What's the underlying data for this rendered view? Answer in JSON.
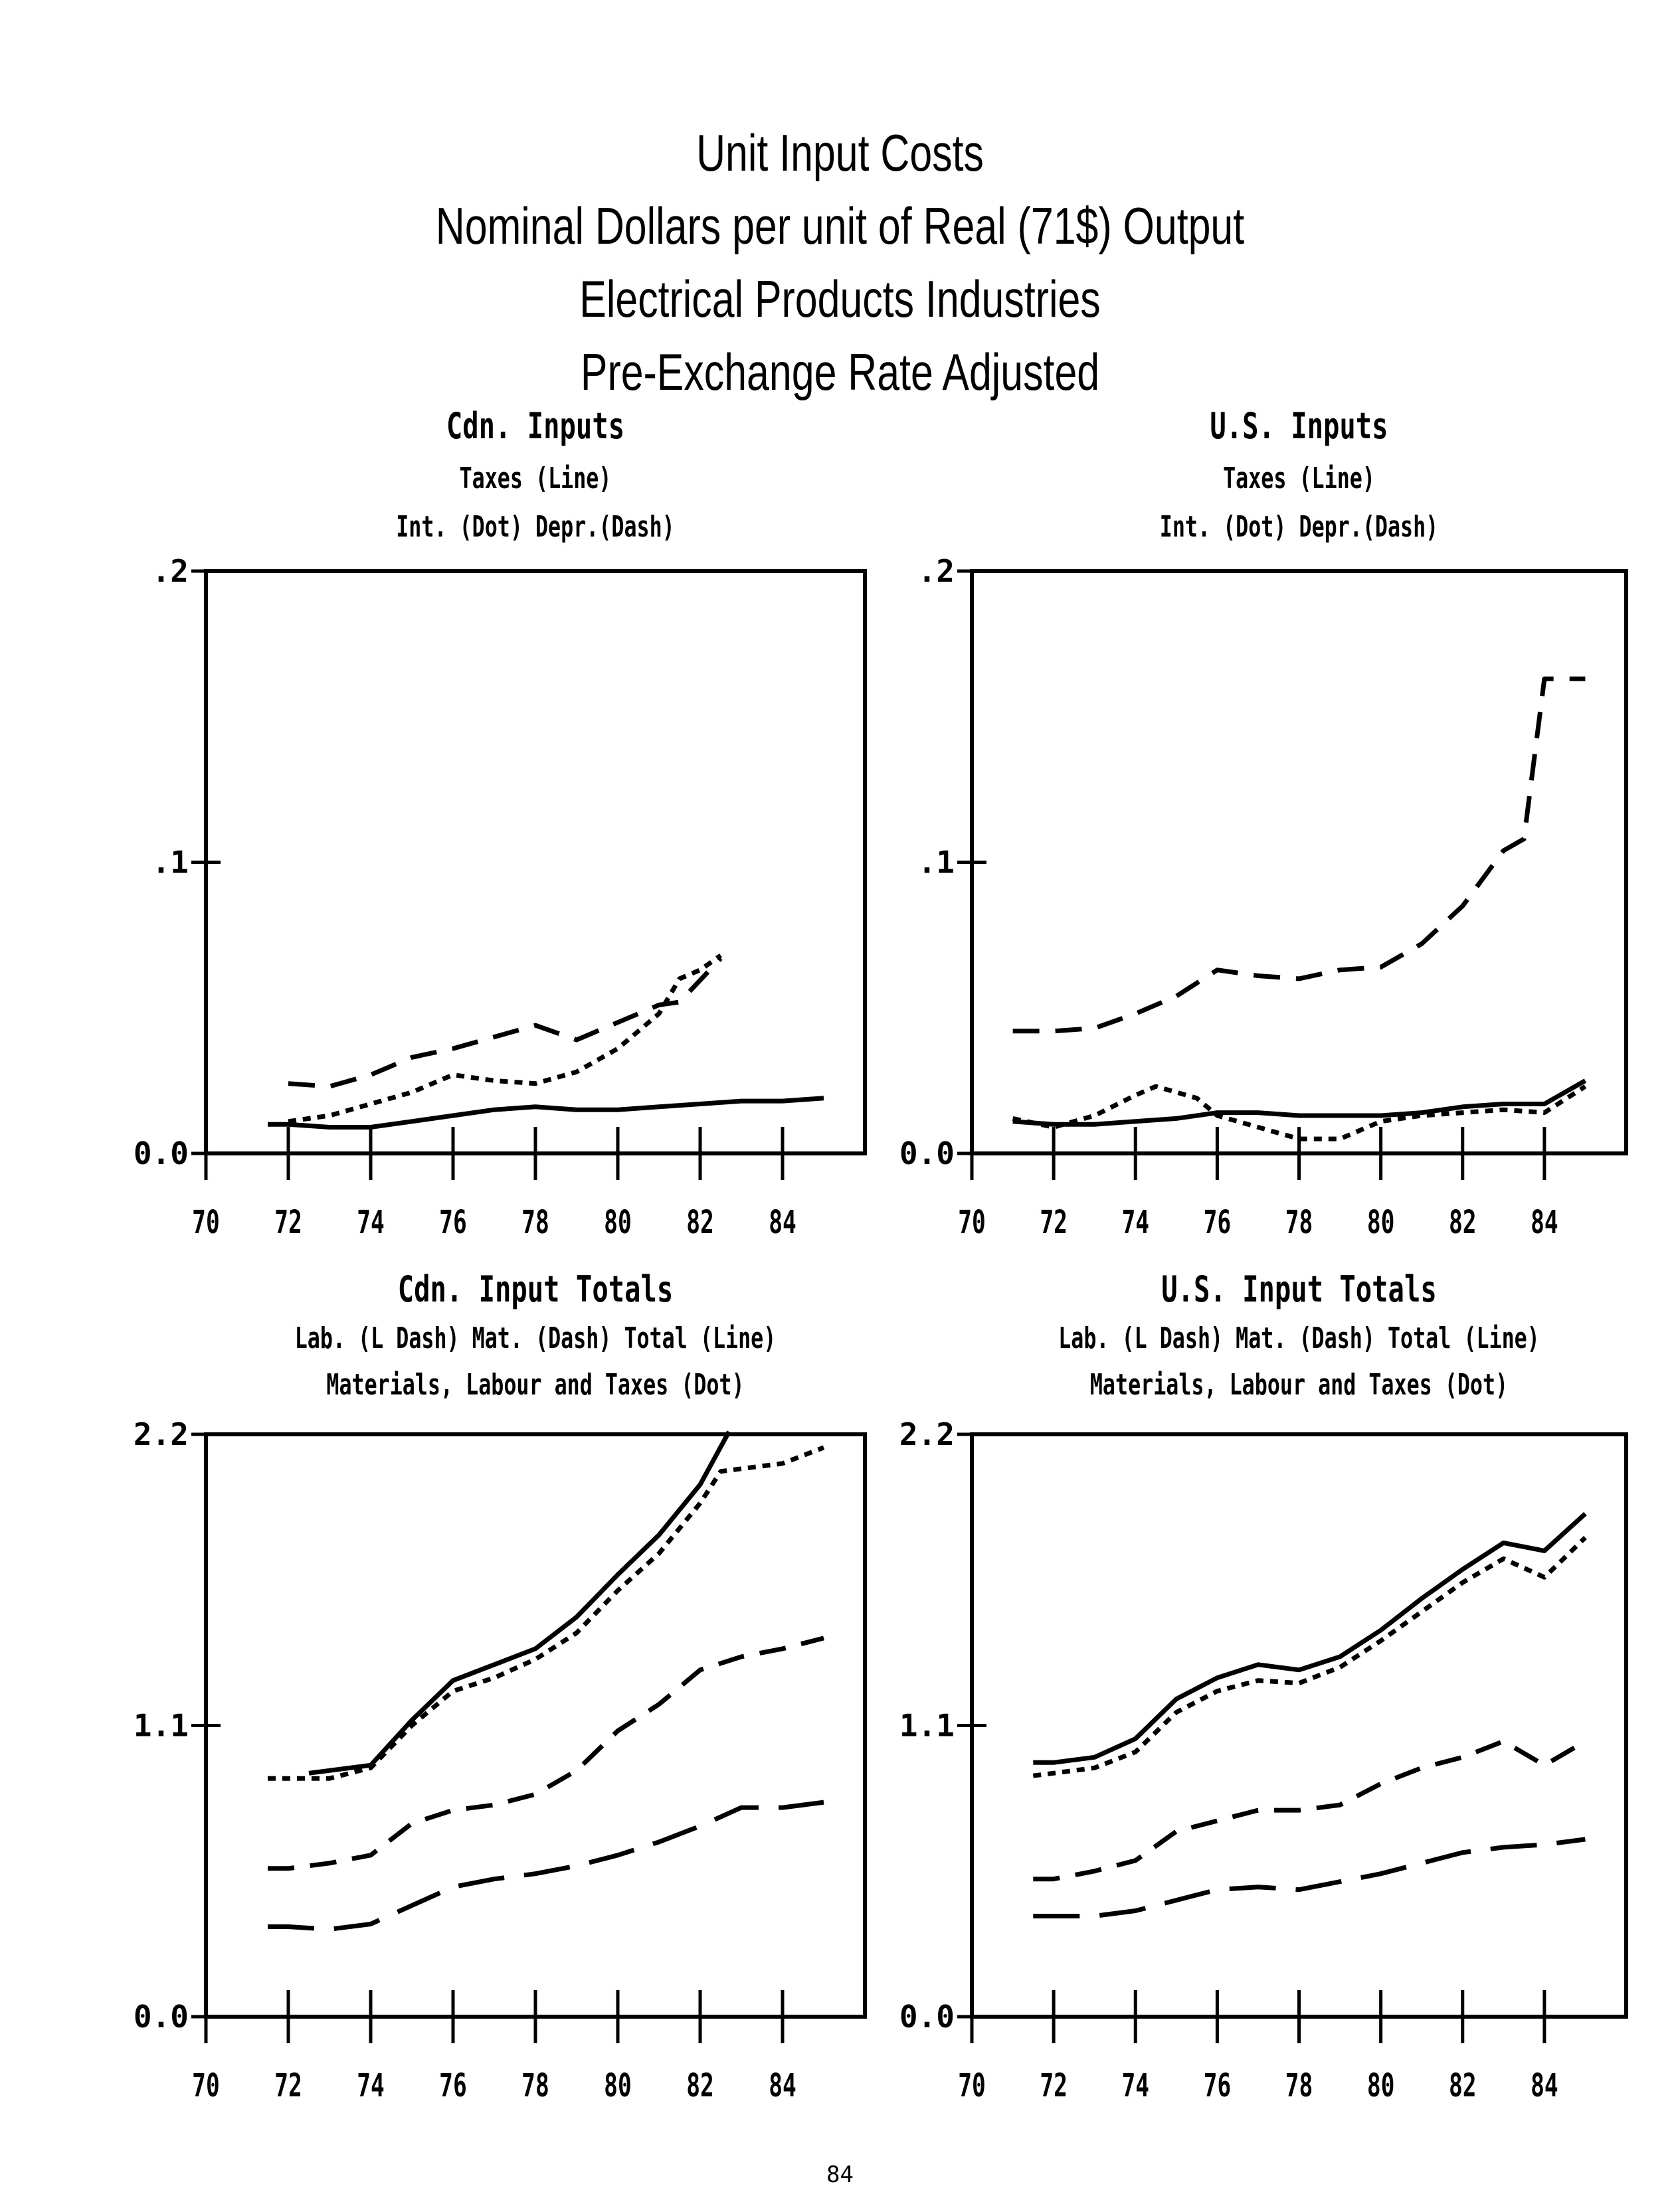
{
  "page": {
    "title_lines": [
      "Unit Input Costs",
      "Nominal Dollars per unit of Real (71$) Output",
      "Electrical Products Industries",
      "Pre-Exchange Rate Adjusted"
    ],
    "page_number": "84"
  },
  "chart_data": [
    {
      "type": "line",
      "title": "Cdn. Inputs",
      "subtitle_lines": [
        "Taxes (Line)",
        "Int. (Dot)   Depr.(Dash)"
      ],
      "x_ticks": [
        "70",
        "72",
        "74",
        "76",
        "78",
        "80",
        "82",
        "84"
      ],
      "xlim": [
        70,
        86
      ],
      "ylim": [
        0,
        0.2
      ],
      "y_ticks": [
        0,
        0.1,
        0.2
      ],
      "y_tick_labels": [
        "0.0",
        ".1",
        ".2"
      ],
      "series": [
        {
          "name": "Taxes",
          "style": "solid",
          "x": [
            71.5,
            72,
            73,
            74,
            75,
            76,
            77,
            78,
            79,
            80,
            81,
            82,
            83,
            84,
            85
          ],
          "y": [
            0.01,
            0.01,
            0.009,
            0.009,
            0.011,
            0.013,
            0.015,
            0.016,
            0.015,
            0.015,
            0.016,
            0.017,
            0.018,
            0.018,
            0.019
          ]
        },
        {
          "name": "Int.",
          "style": "dot",
          "x": [
            72,
            73,
            74,
            75,
            76,
            77,
            78,
            79,
            80,
            81,
            81.5,
            82,
            82.5
          ],
          "y": [
            0.011,
            0.013,
            0.017,
            0.021,
            0.027,
            0.025,
            0.024,
            0.028,
            0.036,
            0.048,
            0.06,
            0.063,
            0.068
          ]
        },
        {
          "name": "Depr.",
          "style": "dash",
          "x": [
            72,
            73,
            74,
            75,
            76,
            77,
            78,
            79,
            80,
            81,
            81.5,
            82.5
          ],
          "y": [
            0.024,
            0.023,
            0.027,
            0.033,
            0.036,
            0.04,
            0.044,
            0.039,
            0.045,
            0.051,
            0.052,
            0.067
          ]
        }
      ]
    },
    {
      "type": "line",
      "title": "U.S. Inputs",
      "subtitle_lines": [
        "Taxes (Line)",
        "Int. (Dot)   Depr.(Dash)"
      ],
      "x_ticks": [
        "70",
        "72",
        "74",
        "76",
        "78",
        "80",
        "82",
        "84"
      ],
      "xlim": [
        70,
        86
      ],
      "ylim": [
        0,
        0.2
      ],
      "y_ticks": [
        0,
        0.1,
        0.2
      ],
      "y_tick_labels": [
        "0.0",
        ".1",
        ".2"
      ],
      "series": [
        {
          "name": "Taxes",
          "style": "solid",
          "x": [
            71,
            72,
            73,
            74,
            75,
            76,
            77,
            78,
            79,
            80,
            81,
            82,
            83,
            84,
            85
          ],
          "y": [
            0.011,
            0.01,
            0.01,
            0.011,
            0.012,
            0.014,
            0.014,
            0.013,
            0.013,
            0.013,
            0.014,
            0.016,
            0.017,
            0.017,
            0.025
          ]
        },
        {
          "name": "Int.",
          "style": "dot",
          "x": [
            71,
            72,
            73,
            74,
            74.5,
            75,
            75.5,
            76,
            77,
            78,
            79,
            80,
            81,
            82,
            83,
            84,
            85
          ],
          "y": [
            0.012,
            0.009,
            0.013,
            0.02,
            0.023,
            0.021,
            0.019,
            0.013,
            0.009,
            0.005,
            0.005,
            0.011,
            0.013,
            0.014,
            0.015,
            0.014,
            0.023
          ]
        },
        {
          "name": "Depr.",
          "style": "dash",
          "x": [
            71,
            72,
            73,
            74,
            75,
            76,
            77,
            78,
            79,
            80,
            81,
            82,
            83,
            83.5,
            84,
            85
          ],
          "y": [
            0.042,
            0.042,
            0.043,
            0.048,
            0.054,
            0.063,
            0.061,
            0.06,
            0.063,
            0.064,
            0.072,
            0.085,
            0.104,
            0.108,
            0.163,
            0.163
          ]
        }
      ]
    },
    {
      "type": "line",
      "title": "Cdn. Input Totals",
      "subtitle_lines": [
        "Lab. (L Dash)   Mat. (Dash)   Total (Line)",
        "Materials, Labour and Taxes (Dot)"
      ],
      "x_ticks": [
        "70",
        "72",
        "74",
        "76",
        "78",
        "80",
        "82",
        "84"
      ],
      "xlim": [
        70,
        86
      ],
      "ylim": [
        0,
        2.2
      ],
      "y_ticks": [
        0,
        1.1,
        2.2
      ],
      "y_tick_labels": [
        "0.0",
        "1.1",
        "2.2"
      ],
      "series": [
        {
          "name": "Total",
          "style": "solid",
          "x": [
            72.5,
            73,
            74,
            75,
            76,
            77,
            78,
            79,
            80,
            81,
            82,
            82.7
          ],
          "y": [
            0.92,
            0.93,
            0.95,
            1.12,
            1.27,
            1.33,
            1.39,
            1.51,
            1.67,
            1.82,
            2.01,
            2.21
          ]
        },
        {
          "name": "Materials, Labour and Taxes",
          "style": "dot",
          "x": [
            71.5,
            72,
            73,
            74,
            75,
            76,
            77,
            78,
            79,
            80,
            81,
            82,
            82.5,
            83,
            84,
            85
          ],
          "y": [
            0.9,
            0.9,
            0.9,
            0.94,
            1.1,
            1.23,
            1.28,
            1.35,
            1.45,
            1.61,
            1.75,
            1.94,
            2.06,
            2.07,
            2.09,
            2.15
          ]
        },
        {
          "name": "Mat.",
          "style": "dash",
          "x": [
            71.5,
            72,
            73,
            74,
            75,
            76,
            77,
            78,
            79,
            80,
            81,
            82,
            83,
            84,
            85
          ],
          "y": [
            0.56,
            0.56,
            0.58,
            0.61,
            0.73,
            0.78,
            0.8,
            0.84,
            0.93,
            1.08,
            1.18,
            1.31,
            1.36,
            1.39,
            1.43
          ]
        },
        {
          "name": "Lab.",
          "style": "long-dash",
          "x": [
            71.5,
            72,
            73,
            74,
            75,
            76,
            77,
            78,
            79,
            80,
            81,
            82,
            83,
            84,
            85
          ],
          "y": [
            0.34,
            0.34,
            0.33,
            0.35,
            0.42,
            0.49,
            0.52,
            0.54,
            0.57,
            0.61,
            0.66,
            0.72,
            0.79,
            0.79,
            0.81
          ]
        }
      ]
    },
    {
      "type": "line",
      "title": "U.S. Input Totals",
      "subtitle_lines": [
        "Lab. (L Dash)   Mat. (Dash)   Total (Line)",
        "Materials, Labour and Taxes (Dot)"
      ],
      "x_ticks": [
        "70",
        "72",
        "74",
        "76",
        "78",
        "80",
        "82",
        "84"
      ],
      "xlim": [
        70,
        86
      ],
      "ylim": [
        0,
        2.2
      ],
      "y_ticks": [
        0,
        1.1,
        2.2
      ],
      "y_tick_labels": [
        "0.0",
        "1.1",
        "2.2"
      ],
      "series": [
        {
          "name": "Total",
          "style": "solid",
          "x": [
            71.5,
            72,
            73,
            74,
            75,
            76,
            77,
            78,
            79,
            80,
            81,
            82,
            83,
            84,
            85
          ],
          "y": [
            0.96,
            0.96,
            0.98,
            1.05,
            1.2,
            1.28,
            1.33,
            1.31,
            1.36,
            1.46,
            1.58,
            1.69,
            1.79,
            1.76,
            1.9
          ]
        },
        {
          "name": "Materials, Labour and Taxes",
          "style": "dot",
          "x": [
            71.5,
            72,
            73,
            74,
            75,
            76,
            77,
            78,
            79,
            80,
            81,
            82,
            83,
            84,
            85
          ],
          "y": [
            0.91,
            0.92,
            0.94,
            1.0,
            1.15,
            1.23,
            1.27,
            1.26,
            1.32,
            1.42,
            1.53,
            1.64,
            1.73,
            1.66,
            1.81
          ]
        },
        {
          "name": "Mat.",
          "style": "dash",
          "x": [
            71.5,
            72,
            73,
            74,
            75,
            76,
            77,
            78,
            79,
            80,
            81,
            82,
            83,
            84,
            85
          ],
          "y": [
            0.52,
            0.52,
            0.55,
            0.59,
            0.7,
            0.74,
            0.78,
            0.78,
            0.8,
            0.88,
            0.94,
            0.98,
            1.04,
            0.95,
            1.04
          ]
        },
        {
          "name": "Lab.",
          "style": "long-dash",
          "x": [
            71.5,
            72,
            73,
            74,
            75,
            76,
            77,
            78,
            79,
            80,
            81,
            82,
            83,
            84,
            85
          ],
          "y": [
            0.38,
            0.38,
            0.38,
            0.4,
            0.44,
            0.48,
            0.49,
            0.48,
            0.51,
            0.54,
            0.58,
            0.62,
            0.64,
            0.65,
            0.67
          ]
        }
      ]
    }
  ]
}
